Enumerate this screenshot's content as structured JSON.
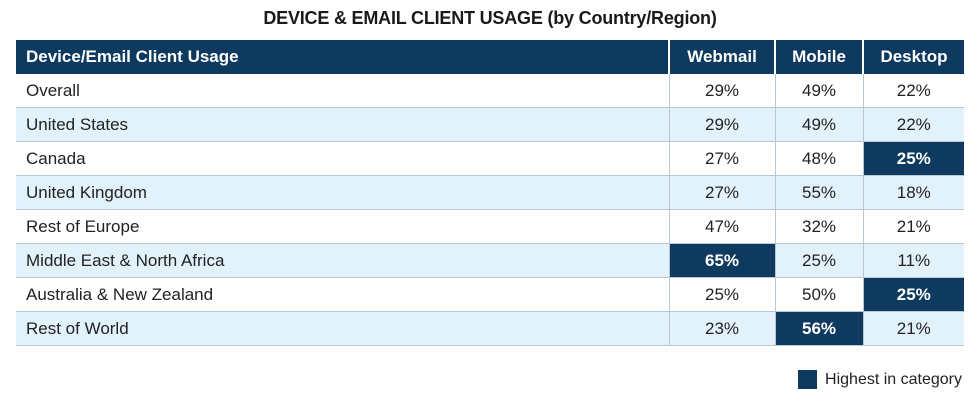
{
  "title": "DEVICE & EMAIL CLIENT USAGE (by Country/Region)",
  "colors": {
    "header_bg": "#0e3a5f",
    "highlight": "#0e3a5f",
    "row_alt_bg": "#e2f2fb",
    "border": "#b9c7d1"
  },
  "legend": {
    "label": "Highest in category",
    "icon": "filled-square-icon"
  },
  "chart_data": {
    "type": "table",
    "title": "DEVICE & EMAIL CLIENT USAGE (by Country/Region)",
    "columns": [
      "Device/Email Client Usage",
      "Webmail",
      "Mobile",
      "Desktop"
    ],
    "rows": [
      {
        "label": "Overall",
        "values": [
          "29%",
          "49%",
          "22%"
        ],
        "highlight": [
          false,
          false,
          false
        ]
      },
      {
        "label": "United States",
        "values": [
          "29%",
          "49%",
          "22%"
        ],
        "highlight": [
          false,
          false,
          false
        ]
      },
      {
        "label": "Canada",
        "values": [
          "27%",
          "48%",
          "25%"
        ],
        "highlight": [
          false,
          false,
          true
        ]
      },
      {
        "label": "United Kingdom",
        "values": [
          "27%",
          "55%",
          "18%"
        ],
        "highlight": [
          false,
          false,
          false
        ]
      },
      {
        "label": "Rest of Europe",
        "values": [
          "47%",
          "32%",
          "21%"
        ],
        "highlight": [
          false,
          false,
          false
        ]
      },
      {
        "label": "Middle East & North Africa",
        "values": [
          "65%",
          "25%",
          "11%"
        ],
        "highlight": [
          true,
          false,
          false
        ]
      },
      {
        "label": "Australia & New Zealand",
        "values": [
          "25%",
          "50%",
          "25%"
        ],
        "highlight": [
          false,
          false,
          true
        ]
      },
      {
        "label": "Rest of World",
        "values": [
          "23%",
          "56%",
          "21%"
        ],
        "highlight": [
          false,
          true,
          false
        ]
      }
    ],
    "legend": "Highest in category"
  }
}
